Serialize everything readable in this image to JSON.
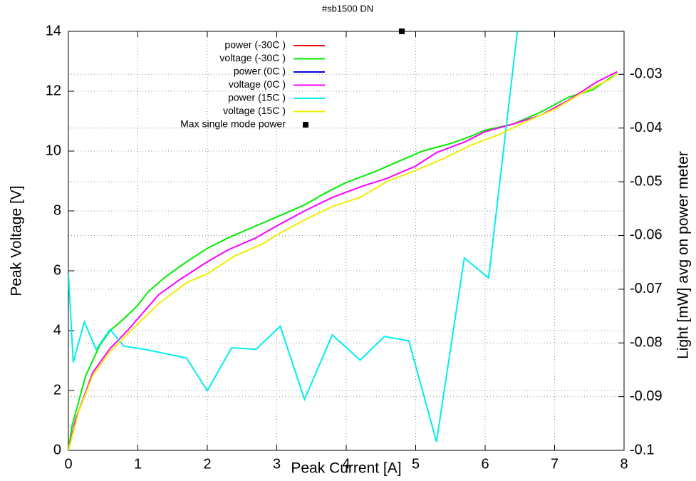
{
  "chart_data": {
    "type": "line",
    "title": "#sb1500 DN",
    "x_label": "Peak Current [A]",
    "y_label": "Peak Voltage [V]",
    "y2_label": "Light [mW] avg on power meter",
    "xlim": [
      0,
      8
    ],
    "xticks": [
      0,
      1,
      2,
      3,
      4,
      5,
      6,
      7,
      8
    ],
    "ylim": [
      0,
      14
    ],
    "yticks": [
      0,
      2,
      4,
      6,
      8,
      10,
      12,
      14
    ],
    "y2lim": [
      -0.1,
      -0.022
    ],
    "y2ticks": [
      -0.1,
      -0.09,
      -0.08,
      -0.07,
      -0.06,
      -0.05,
      -0.04,
      -0.03
    ],
    "grid": true,
    "legend": "top-left",
    "series": [
      {
        "name": "power (-30C )",
        "color": "#ff0000",
        "axis": "y2",
        "x": [],
        "values": []
      },
      {
        "name": "voltage (-30C )",
        "color": "#00ee00",
        "x": [
          0,
          0.05,
          0.25,
          0.45,
          0.6,
          0.8,
          1.0,
          1.15,
          1.4,
          1.7,
          2.0,
          2.3,
          2.7,
          3.0,
          3.4,
          3.7,
          4.0,
          4.4,
          4.8,
          5.1,
          5.5,
          5.8,
          6.0,
          6.4,
          6.8,
          7.2,
          7.55,
          7.9
        ],
        "values": [
          0,
          0.8,
          2.5,
          3.5,
          4.0,
          4.4,
          4.85,
          5.3,
          5.8,
          6.3,
          6.75,
          7.1,
          7.5,
          7.8,
          8.2,
          8.6,
          8.95,
          9.3,
          9.7,
          10.0,
          10.25,
          10.5,
          10.7,
          10.9,
          11.3,
          11.8,
          12.05,
          12.6
        ]
      },
      {
        "name": "power (0C )",
        "color": "#0000dd",
        "axis": "y2",
        "x": [],
        "values": []
      },
      {
        "name": "voltage (0C )",
        "color": "#ff00ff",
        "x": [
          0,
          0.1,
          0.35,
          0.6,
          0.85,
          1.0,
          1.3,
          1.6,
          2.0,
          2.3,
          2.7,
          3.0,
          3.4,
          3.8,
          4.2,
          4.6,
          5.0,
          5.3,
          5.7,
          6.0,
          6.4,
          6.8,
          7.2,
          7.6,
          7.9
        ],
        "values": [
          0,
          1.0,
          2.6,
          3.4,
          4.0,
          4.4,
          5.2,
          5.7,
          6.3,
          6.7,
          7.1,
          7.5,
          8.0,
          8.45,
          8.8,
          9.1,
          9.5,
          9.95,
          10.3,
          10.65,
          10.9,
          11.2,
          11.7,
          12.3,
          12.65
        ]
      },
      {
        "name": "power (15C )",
        "color": "#00eeee",
        "axis": "y2",
        "x": [
          0,
          0.07,
          0.23,
          0.4,
          0.6,
          0.8,
          1.1,
          1.4,
          1.7,
          2.0,
          2.35,
          2.7,
          3.05,
          3.4,
          3.8,
          4.2,
          4.55,
          4.9,
          5.3,
          5.7,
          6.05,
          6.5
        ],
        "values": [
          -0.0671,
          -0.0836,
          -0.0761,
          -0.0812,
          -0.0775,
          -0.0806,
          -0.0812,
          -0.082,
          -0.0828,
          -0.0889,
          -0.0809,
          -0.0812,
          -0.0769,
          -0.0905,
          -0.0785,
          -0.0832,
          -0.0788,
          -0.0796,
          -0.0984,
          -0.0642,
          -0.0679,
          -0.018
        ]
      },
      {
        "name": "voltage (15C )",
        "color": "#eeee00",
        "x": [
          0,
          0.15,
          0.35,
          0.6,
          0.9,
          1.3,
          1.7,
          2.0,
          2.4,
          2.8,
          3.0,
          3.4,
          3.8,
          4.2,
          4.6,
          5.0,
          5.4,
          5.8,
          6.2,
          6.6,
          7.0,
          7.4,
          7.8,
          7.9
        ],
        "values": [
          0,
          1.3,
          2.5,
          3.3,
          4.0,
          4.9,
          5.6,
          5.9,
          6.5,
          6.9,
          7.2,
          7.7,
          8.15,
          8.45,
          9.0,
          9.35,
          9.75,
          10.2,
          10.55,
          11.0,
          11.4,
          11.95,
          12.4,
          12.6
        ]
      },
      {
        "name": "Max single mode power",
        "color": "#000000",
        "marker": "square",
        "x": [
          4.8
        ],
        "values": [
          14
        ]
      }
    ]
  }
}
